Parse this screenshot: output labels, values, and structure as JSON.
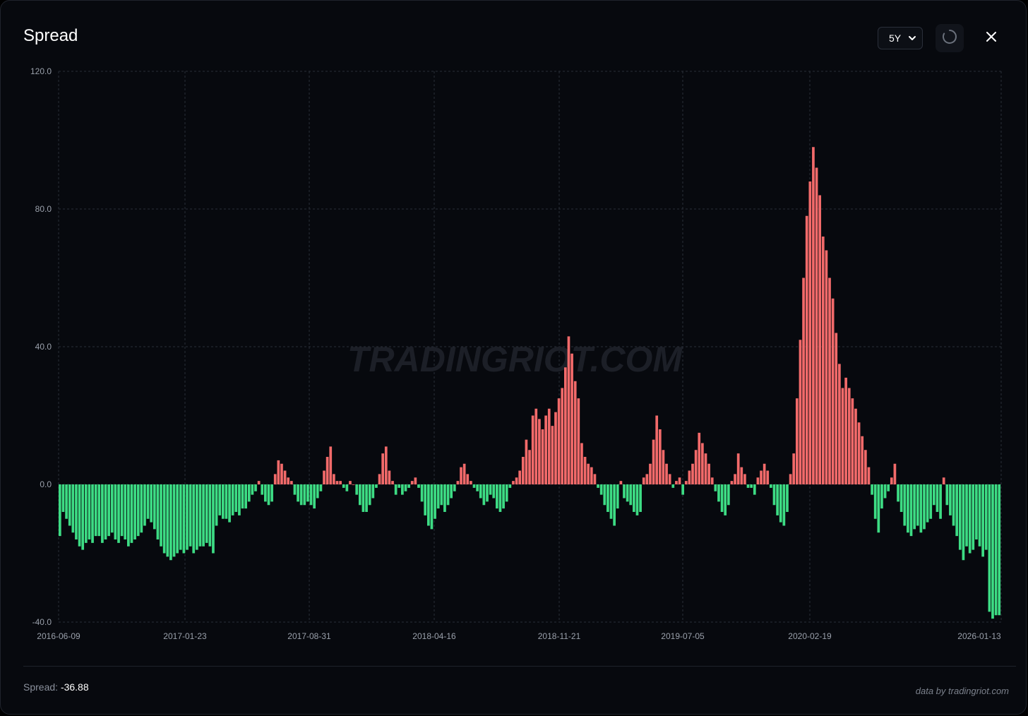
{
  "header": {
    "title": "Spread",
    "range_selected": "5Y",
    "icons": {
      "refresh": "refresh-icon",
      "close": "close-icon",
      "dropdown": "chevron-down-icon"
    }
  },
  "watermark": "TRADINGRIOT.COM",
  "footer": {
    "spread_label": "Spread:",
    "spread_value": "-36.88",
    "credit": "data by tradingriot.com"
  },
  "colors": {
    "positive": "#f26a6a",
    "negative": "#3ddc84",
    "grid": "#2a2e38",
    "axis_text": "#9aa0ab",
    "background": "#07090e"
  },
  "chart_data": {
    "type": "bar",
    "title": "Spread",
    "xlabel": "",
    "ylabel": "",
    "ylim": [
      -40,
      120
    ],
    "yticks": [
      "120.0",
      "80.0",
      "40.0",
      "0.0",
      "-40.0"
    ],
    "x_ticks": [
      "2016-06-09",
      "2017-01-23",
      "2017-08-31",
      "2018-04-16",
      "2018-11-21",
      "2019-07-05",
      "2020-02-19",
      "2026-01-13"
    ],
    "grid": true,
    "legend": "none",
    "series": [
      {
        "name": "Spread",
        "values": [
          -15,
          -8,
          -10,
          -12,
          -14,
          -16,
          -18,
          -19,
          -17,
          -16,
          -17,
          -15,
          -15,
          -17,
          -16,
          -15,
          -14,
          -16,
          -17,
          -15,
          -16,
          -18,
          -17,
          -16,
          -15,
          -14,
          -12,
          -10,
          -11,
          -13,
          -16,
          -18,
          -20,
          -21,
          -22,
          -21,
          -20,
          -19,
          -20,
          -19,
          -18,
          -20,
          -19,
          -18,
          -18,
          -17,
          -18,
          -20,
          -12,
          -9,
          -10,
          -10,
          -11,
          -9,
          -8,
          -9,
          -7,
          -7,
          -5,
          -3,
          -2,
          1,
          -3,
          -5,
          -6,
          -5,
          3,
          7,
          6,
          4,
          2,
          1,
          -3,
          -5,
          -6,
          -6,
          -5,
          -6,
          -7,
          -4,
          -2,
          4,
          8,
          11,
          3,
          1,
          1,
          -1,
          -2,
          1,
          0,
          -3,
          -6,
          -8,
          -8,
          -6,
          -4,
          -1,
          3,
          9,
          11,
          4,
          1,
          -3,
          -1,
          -3,
          -2,
          -1,
          1,
          2,
          -1,
          -5,
          -9,
          -12,
          -13,
          -10,
          -7,
          -6,
          -8,
          -6,
          -4,
          -2,
          1,
          5,
          6,
          3,
          1,
          -1,
          -2,
          -4,
          -6,
          -5,
          -3,
          -4,
          -7,
          -8,
          -7,
          -5,
          -1,
          1,
          2,
          4,
          8,
          13,
          10,
          20,
          22,
          19,
          16,
          20,
          22,
          17,
          21,
          25,
          28,
          34,
          43,
          38,
          30,
          25,
          12,
          8,
          6,
          5,
          3,
          -1,
          -3,
          -6,
          -8,
          -10,
          -12,
          -7,
          1,
          -4,
          -5,
          -6,
          -8,
          -9,
          -8,
          2,
          3,
          6,
          13,
          20,
          16,
          10,
          6,
          3,
          -1,
          1,
          2,
          -3,
          1,
          4,
          6,
          10,
          15,
          12,
          9,
          6,
          2,
          -2,
          -5,
          -8,
          -9,
          -6,
          1,
          3,
          9,
          5,
          3,
          -1,
          -1,
          -3,
          2,
          4,
          6,
          4,
          -1,
          -6,
          -9,
          -11,
          -12,
          -8,
          3,
          9,
          25,
          42,
          60,
          78,
          88,
          98,
          92,
          84,
          72,
          68,
          60,
          54,
          44,
          35,
          28,
          31,
          28,
          25,
          22,
          18,
          14,
          10,
          5,
          -3,
          -10,
          -14,
          -7,
          -4,
          -2,
          2,
          6,
          -5,
          -8,
          -12,
          -14,
          -15,
          -13,
          -12,
          -14,
          -13,
          -11,
          -10,
          -6,
          -8,
          -10,
          2,
          -6,
          -9,
          -12,
          -15,
          -19,
          -22,
          -18,
          -20,
          -19,
          -16,
          -18,
          -21,
          -19,
          -37,
          -39,
          -38,
          -38
        ]
      }
    ]
  }
}
